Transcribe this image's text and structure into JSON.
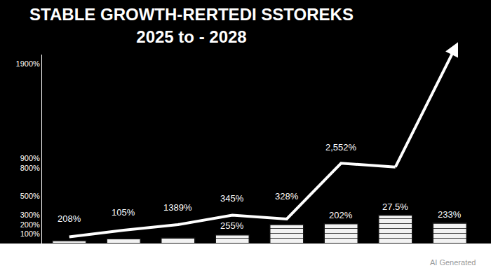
{
  "chart_data": {
    "type": "bar",
    "title": "STABLE GROWTH-RERTEDI SSTOREKS",
    "subtitle": "2025 to - 2028",
    "categories": [
      null,
      null,
      null,
      null,
      null,
      null,
      null,
      null
    ],
    "series": [
      {
        "type": "bar",
        "color": "#f2f2f2",
        "values": [
          30,
          50,
          60,
          90,
          200,
          210,
          300,
          220
        ]
      },
      {
        "type": "line",
        "color": "#ffffff",
        "line_style": "solid",
        "values": [
          70,
          140,
          200,
          300,
          260,
          850,
          810,
          null
        ]
      }
    ],
    "ylim": [
      0,
      2000
    ],
    "yticks": [
      {
        "value": 100,
        "label": "100%"
      },
      {
        "value": 200,
        "label": "200%"
      },
      {
        "value": 300,
        "label": "300%"
      },
      {
        "value": 500,
        "label": "500%"
      },
      {
        "value": 800,
        "label": "800%"
      },
      {
        "value": 900,
        "label": "900%"
      },
      {
        "value": 1900,
        "label": "1900%"
      }
    ],
    "grid": false,
    "tick_labels": "y",
    "annotations": [
      {
        "text": "208%",
        "x": 0,
        "y": 260
      },
      {
        "text": "105%",
        "x": 1,
        "y": 330
      },
      {
        "text": "1389%",
        "x": 2,
        "y": 380
      },
      {
        "text": "345%",
        "x": 3,
        "y": 480
      },
      {
        "text": "328%",
        "x": 4,
        "y": 500
      },
      {
        "text": "2,552%",
        "x": 5,
        "y": 1020
      },
      {
        "text": "255%",
        "x": 3,
        "y": 190
      },
      {
        "text": "202%",
        "x": 5,
        "y": 300
      },
      {
        "text": "27.5%",
        "x": 6,
        "y": 390
      },
      {
        "text": "233%",
        "x": 7,
        "y": 310
      }
    ],
    "caption": "AI Generated"
  }
}
